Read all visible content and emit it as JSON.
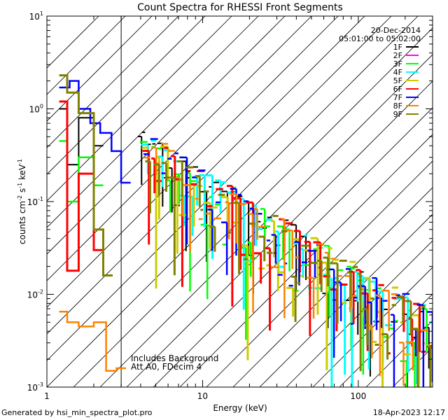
{
  "chart_data": {
    "type": "line",
    "title": "Count Spectra for RHESSI Front Segments",
    "xlabel": "Energy (keV)",
    "ylabel": "counts cm",
    "ylabel_sup1": "-2",
    "ylabel_mid": " s",
    "ylabel_sup2": "-1",
    "ylabel_end": " keV",
    "ylabel_sup3": "-1",
    "xscale": "log",
    "yscale": "log",
    "xlim": [
      1,
      300
    ],
    "ylim": [
      0.001,
      10
    ],
    "x_ticks": [
      {
        "value": 1,
        "label": "1"
      },
      {
        "value": 10,
        "label": "10"
      },
      {
        "value": 100,
        "label": "100"
      }
    ],
    "y_ticks": [
      {
        "value": 0.001,
        "base": "10",
        "exp": "-3"
      },
      {
        "value": 0.01,
        "base": "10",
        "exp": "-2"
      },
      {
        "value": 0.1,
        "base": "10",
        "exp": "-1"
      },
      {
        "value": 1,
        "base": "10",
        "exp": "0"
      },
      {
        "value": 10,
        "base": "10",
        "exp": "1"
      }
    ],
    "date": "20-Dec-2014",
    "time_range": "05:01:00 to 05:02:00",
    "annotation_lines": [
      "Includes Background",
      "Att A0, FDecim 4"
    ],
    "hatched_region_kev": [
      1,
      3
    ],
    "legend_position": "top-right",
    "series": [
      {
        "name": "1F",
        "color": "#000000",
        "steps": [
          [
            1.2,
            1.0
          ],
          [
            1.35,
            0.25
          ],
          [
            1.6,
            0.8
          ],
          [
            2.0,
            0.4
          ]
        ],
        "seed": 1
      },
      {
        "name": "2F",
        "color": "#ff00ff",
        "steps": [],
        "seed": 2
      },
      {
        "name": "3F",
        "color": "#00ff00",
        "steps": [
          [
            1.2,
            0.45
          ],
          [
            1.35,
            0.1
          ],
          [
            1.6,
            0.3
          ],
          [
            2.0,
            0.15
          ]
        ],
        "seed": 3
      },
      {
        "name": "4F",
        "color": "#00ffff",
        "steps": [],
        "seed": 4
      },
      {
        "name": "5F",
        "color": "#cccc00",
        "steps": [],
        "seed": 5
      },
      {
        "name": "6F",
        "color": "#ff0000",
        "steps": [
          [
            1.2,
            1.2
          ],
          [
            1.35,
            0.018
          ],
          [
            1.6,
            0.2
          ],
          [
            2.0,
            0.03
          ]
        ],
        "seed": 6
      },
      {
        "name": "7F",
        "color": "#0000ff",
        "steps": [
          [
            1.2,
            1.7
          ],
          [
            1.4,
            2.0
          ],
          [
            1.6,
            1.0
          ],
          [
            1.9,
            0.7
          ],
          [
            2.2,
            0.55
          ],
          [
            2.6,
            0.35
          ],
          [
            3.0,
            0.16
          ]
        ],
        "seed": 7
      },
      {
        "name": "8F",
        "color": "#ff8000",
        "steps": [
          [
            1.2,
            0.0065
          ],
          [
            1.35,
            0.005
          ],
          [
            1.6,
            0.0045
          ],
          [
            2.0,
            0.005
          ],
          [
            2.4,
            0.0015
          ],
          [
            2.8,
            0.0016
          ]
        ],
        "seed": 8
      },
      {
        "name": "9F",
        "color": "#808000",
        "steps": [
          [
            1.2,
            2.3
          ],
          [
            1.35,
            1.5
          ],
          [
            1.6,
            0.9
          ],
          [
            2.0,
            0.05
          ],
          [
            2.3,
            0.016
          ]
        ],
        "seed": 9
      }
    ]
  },
  "footer": {
    "left": "Generated by hsi_min_spectra_plot.pro",
    "right": "18-Apr-2023 12:17"
  }
}
